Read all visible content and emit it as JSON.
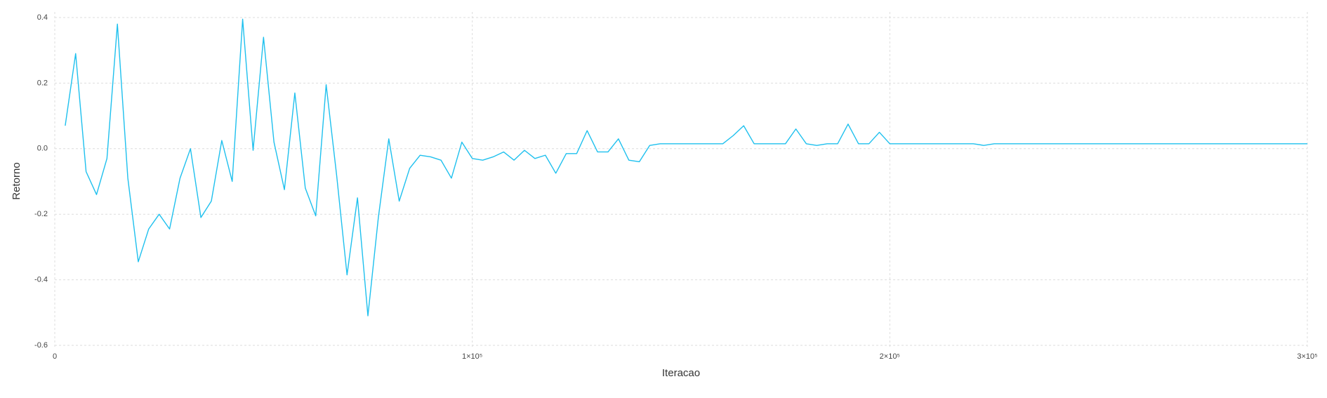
{
  "chart_data": {
    "type": "line",
    "xlabel": "Iteracao",
    "ylabel": "Retorno",
    "x": [
      2500,
      5000,
      7500,
      10000,
      12500,
      15000,
      17500,
      20000,
      22500,
      25000,
      27500,
      30000,
      32500,
      35000,
      37500,
      40000,
      42500,
      45000,
      47500,
      50000,
      52500,
      55000,
      57500,
      60000,
      62500,
      65000,
      67500,
      70000,
      72500,
      75000,
      77500,
      80000,
      82500,
      85000,
      87500,
      90000,
      92500,
      95000,
      97500,
      100000,
      102500,
      105000,
      107500,
      110000,
      112500,
      115000,
      117500,
      120000,
      122500,
      125000,
      127500,
      130000,
      132500,
      135000,
      137500,
      140000,
      142500,
      145000,
      147500,
      150000,
      152500,
      155000,
      157500,
      160000,
      162500,
      165000,
      167500,
      170000,
      172500,
      175000,
      177500,
      180000,
      182500,
      185000,
      187500,
      190000,
      192500,
      195000,
      197500,
      200000,
      202500,
      205000,
      207500,
      210000,
      212500,
      215000,
      217500,
      220000,
      222500,
      225000,
      227500,
      230000,
      232500,
      235000,
      237500,
      240000,
      242500,
      245000,
      247500,
      250000,
      252500,
      255000,
      257500,
      260000,
      262500,
      265000,
      267500,
      270000,
      272500,
      275000,
      277500,
      280000,
      282500,
      285000,
      287500,
      290000,
      292500,
      295000,
      297500,
      300000
    ],
    "series": [
      {
        "color": "#1ec0ee",
        "values": [
          0.07,
          0.29,
          -0.07,
          -0.14,
          -0.03,
          0.38,
          -0.09,
          -0.345,
          -0.245,
          -0.2,
          -0.245,
          -0.09,
          0,
          -0.21,
          -0.16,
          0.025,
          -0.1,
          0.395,
          -0.005,
          0.34,
          0.02,
          -0.125,
          0.17,
          -0.12,
          -0.205,
          0.195,
          -0.08,
          -0.385,
          -0.15,
          -0.51,
          -0.21,
          0.03,
          -0.16,
          -0.06,
          -0.02,
          -0.025,
          -0.035,
          -0.09,
          0.02,
          -0.03,
          -0.035,
          -0.025,
          -0.01,
          -0.035,
          -0.005,
          -0.03,
          -0.02,
          -0.075,
          -0.015,
          -0.015,
          0.055,
          -0.01,
          -0.01,
          0.03,
          -0.035,
          -0.04,
          0.01,
          0.015,
          0.015,
          0.015,
          0.015,
          0.015,
          0.015,
          0.015,
          0.04,
          0.07,
          0.015,
          0.015,
          0.015,
          0.015,
          0.06,
          0.015,
          0.01,
          0.015,
          0.015,
          0.075,
          0.015,
          0.015,
          0.05,
          0.015,
          0.015,
          0.015,
          0.015,
          0.015,
          0.015,
          0.015,
          0.015,
          0.015,
          0.01,
          0.015,
          0.015,
          0.015,
          0.015,
          0.015,
          0.015,
          0.015,
          0.015,
          0.015,
          0.015,
          0.015,
          0.015,
          0.015,
          0.015,
          0.015,
          0.015,
          0.015,
          0.015,
          0.015,
          0.015,
          0.015,
          0.015,
          0.015,
          0.015,
          0.015,
          0.015,
          0.015,
          0.015,
          0.015,
          0.015,
          0.015
        ]
      }
    ],
    "xlim": [
      0,
      300000
    ],
    "xticks": [
      0,
      {
        "value": 100000,
        "label": "1×10⁵"
      },
      {
        "value": 200000,
        "label": "2×10⁵"
      },
      {
        "value": 300000,
        "label": "3×10⁵"
      }
    ],
    "ylim": [
      -0.6,
      0.4
    ],
    "yticks": [
      -0.6,
      -0.4,
      -0.2,
      {
        "value": 0,
        "label": "0.0"
      },
      0.2,
      0.4
    ],
    "grid": true
  }
}
